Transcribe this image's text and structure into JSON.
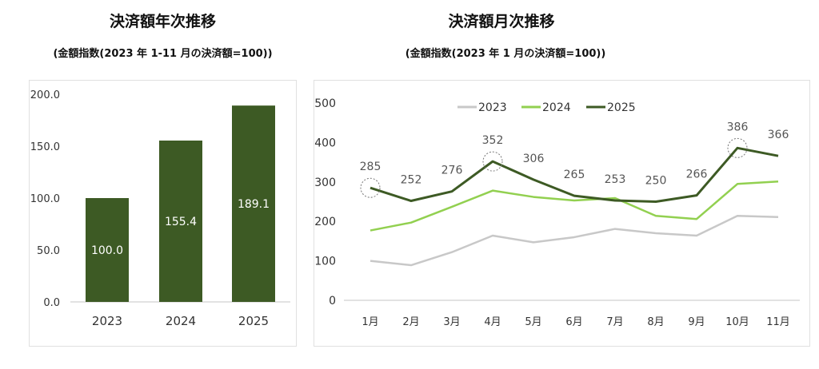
{
  "chart_data": [
    {
      "type": "bar",
      "title": "決済額年次推移",
      "subtitle": "(金額指数(2023 年 1-11 月の決済額=100))",
      "categories": [
        "2023",
        "2024",
        "2025"
      ],
      "values": [
        100.0,
        155.4,
        189.1
      ],
      "value_labels": [
        "100.0",
        "155.4",
        "189.1"
      ],
      "ylim": [
        0,
        200
      ],
      "yticks": [
        "0.0",
        "50.0",
        "100.0",
        "150.0",
        "200.0"
      ],
      "grid": false,
      "bar_color": "#3d5a24"
    },
    {
      "type": "line",
      "title": "決済額月次推移",
      "subtitle": "(金額指数(2023 年 1 月の決済額=100))",
      "categories": [
        "1月",
        "2月",
        "3月",
        "4月",
        "5月",
        "6月",
        "7月",
        "8月",
        "9月",
        "10月",
        "11月"
      ],
      "ylim": [
        0,
        500
      ],
      "yticks": [
        "0",
        "100",
        "200",
        "300",
        "400",
        "500"
      ],
      "grid": false,
      "legend_placement": "top",
      "series": [
        {
          "name": "2023",
          "color": "#c8c8c8",
          "values": [
            100,
            89,
            122,
            164,
            147,
            160,
            181,
            170,
            164,
            214,
            211
          ]
        },
        {
          "name": "2024",
          "color": "#92d050",
          "values": [
            177,
            197,
            237,
            278,
            262,
            253,
            259,
            214,
            206,
            295,
            301
          ]
        },
        {
          "name": "2025",
          "color": "#3d5a24",
          "values": [
            285,
            252,
            276,
            352,
            306,
            265,
            253,
            250,
            266,
            386,
            366
          ],
          "data_labels": [
            "285",
            "252",
            "276",
            "352",
            "306",
            "265",
            "253",
            "250",
            "266",
            "386",
            "366"
          ],
          "highlighted_points": [
            "1月",
            "4月",
            "10月"
          ]
        }
      ]
    }
  ]
}
